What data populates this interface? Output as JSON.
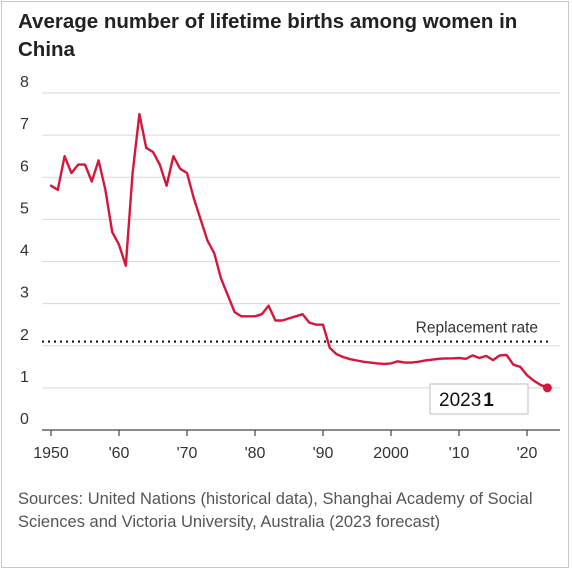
{
  "title": "Average number of lifetime births among women in China",
  "source": "Sources: United Nations (historical data), Shanghai Academy of Social Sciences and Victoria University, Australia (2023 forecast)",
  "chart_data": {
    "type": "line",
    "title": "Average number of lifetime births among women in China",
    "xlabel": "",
    "ylabel": "",
    "xlim": [
      1948,
      2025
    ],
    "ylim": [
      0,
      8
    ],
    "y_ticks": [
      0,
      1,
      2,
      3,
      4,
      5,
      6,
      7,
      8
    ],
    "x_ticks": [
      {
        "value": 1950,
        "label": "1950"
      },
      {
        "value": 1960,
        "label": "'60"
      },
      {
        "value": 1970,
        "label": "'70"
      },
      {
        "value": 1980,
        "label": "'80"
      },
      {
        "value": 1990,
        "label": "'90"
      },
      {
        "value": 2000,
        "label": "2000"
      },
      {
        "value": 2010,
        "label": "'10"
      },
      {
        "value": 2020,
        "label": "'20"
      }
    ],
    "grid": "horizontal",
    "line_color": "#d6163b",
    "reference": {
      "label": "Replacement rate",
      "value": 2.1
    },
    "series": [
      {
        "x": [
          1950,
          1951,
          1952,
          1953,
          1954,
          1955,
          1956,
          1957,
          1958,
          1959,
          1960,
          1961,
          1962,
          1963,
          1964,
          1965,
          1966,
          1967,
          1968,
          1969,
          1970,
          1971,
          1972,
          1973,
          1974,
          1975,
          1976,
          1977,
          1978,
          1979,
          1980,
          1981,
          1982,
          1983,
          1984,
          1985,
          1986,
          1987,
          1988,
          1989,
          1990,
          1991,
          1992,
          1993,
          1994,
          1995,
          1996,
          1997,
          1998,
          1999,
          2000,
          2001,
          2002,
          2003,
          2004,
          2005,
          2006,
          2007,
          2008,
          2009,
          2010,
          2011,
          2012,
          2013,
          2014,
          2015,
          2016,
          2017,
          2018,
          2019,
          2020,
          2021,
          2022,
          2023
        ],
        "y": [
          5.8,
          5.7,
          6.5,
          6.1,
          6.3,
          6.3,
          5.9,
          6.4,
          5.7,
          4.7,
          4.4,
          3.9,
          6.1,
          7.5,
          6.7,
          6.6,
          6.3,
          5.8,
          6.5,
          6.2,
          6.1,
          5.5,
          5.0,
          4.5,
          4.2,
          3.6,
          3.2,
          2.8,
          2.7,
          2.7,
          2.7,
          2.75,
          2.95,
          2.6,
          2.6,
          2.65,
          2.7,
          2.75,
          2.55,
          2.5,
          2.5,
          1.95,
          1.8,
          1.73,
          1.68,
          1.65,
          1.62,
          1.6,
          1.58,
          1.57,
          1.58,
          1.63,
          1.6,
          1.6,
          1.62,
          1.65,
          1.67,
          1.69,
          1.7,
          1.7,
          1.71,
          1.69,
          1.77,
          1.71,
          1.76,
          1.66,
          1.77,
          1.78,
          1.55,
          1.5,
          1.3,
          1.17,
          1.07,
          1.0
        ]
      }
    ],
    "callout": {
      "year": "2023",
      "value": "1"
    }
  }
}
